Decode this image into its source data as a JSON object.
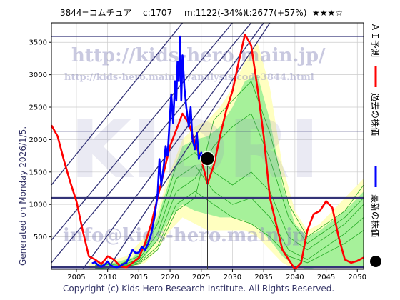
{
  "header": {
    "code_name": "3844=コムチュア",
    "current": "c:1707",
    "min": "m:1122(-34%)",
    "target": "t:2677(+57%)",
    "rating": "★★★☆"
  },
  "side_label": "Generated on Monday 2026/1/5.",
  "copyright": "Copyright (c) Kids-Hero Research Institute. All Rights Reserved.",
  "watermarks": {
    "url_main": "http://kids-hero.main.jp/",
    "url_code": "http://kids-hero.main.jp/analysis/code3844.html",
    "big": "KIDRI",
    "info": "info@kids-hero.main.jp"
  },
  "legend": [
    {
      "label": "ＡＩ予測",
      "color": "#ff0000",
      "kind": "line"
    },
    {
      "label": "過去の株価",
      "color": "#0000ff",
      "kind": "line"
    },
    {
      "label": "最新の株価",
      "color": "#000000",
      "kind": "dot"
    }
  ],
  "colors": {
    "plot_bg": "#ffffff",
    "band_outer": "#ffffc0",
    "band_inner": "#90ee90",
    "band_lines": "#22aa22",
    "trend_lines": "#333377",
    "hlines": "#333377",
    "ai": "#ff0000",
    "past": "#0000ff",
    "latest": "#000000"
  },
  "chart_data": {
    "type": "line",
    "xlim": [
      2001,
      2051
    ],
    "ylim": [
      0,
      3800
    ],
    "x_ticks": [
      2005,
      2010,
      2015,
      2020,
      2025,
      2030,
      2035,
      2040,
      2045,
      2050
    ],
    "y_ticks": [
      500,
      1000,
      1500,
      2000,
      2500,
      3000,
      3500
    ],
    "horizontal_lines": [
      {
        "y": 3590,
        "width": 1.2
      },
      {
        "y": 2130,
        "width": 1.2
      },
      {
        "y": 1100,
        "width": 2.5
      },
      {
        "y": 30,
        "width": 2.5
      }
    ],
    "trend_lines": [
      {
        "x1": 2001,
        "y1": 100,
        "x2": 2033,
        "y2": 3800
      },
      {
        "x1": 2001,
        "y1": 450,
        "x2": 2030,
        "y2": 3800
      },
      {
        "x1": 2001,
        "y1": 1300,
        "x2": 2022,
        "y2": 3800
      },
      {
        "x1": 2006,
        "y1": 0,
        "x2": 2035,
        "y2": 3800
      },
      {
        "x1": 2010,
        "y1": 0,
        "x2": 2036,
        "y2": 3800
      }
    ],
    "band_outer_upper": [
      [
        2007,
        100
      ],
      [
        2010,
        120
      ],
      [
        2013,
        200
      ],
      [
        2016,
        500
      ],
      [
        2018,
        900
      ],
      [
        2020,
        1500
      ],
      [
        2022,
        2000
      ],
      [
        2024,
        2200
      ],
      [
        2026,
        2300
      ],
      [
        2028,
        2500
      ],
      [
        2030,
        2800
      ],
      [
        2032,
        3200
      ],
      [
        2034,
        3500
      ],
      [
        2036,
        2800
      ],
      [
        2038,
        1600
      ],
      [
        2040,
        900
      ],
      [
        2042,
        600
      ],
      [
        2044,
        700
      ],
      [
        2046,
        900
      ],
      [
        2048,
        1100
      ],
      [
        2051,
        1400
      ]
    ],
    "band_outer_lower": [
      [
        2051,
        0
      ],
      [
        2046,
        0
      ],
      [
        2042,
        0
      ],
      [
        2040,
        0
      ],
      [
        2038,
        100
      ],
      [
        2036,
        300
      ],
      [
        2034,
        500
      ],
      [
        2032,
        600
      ],
      [
        2030,
        600
      ],
      [
        2028,
        600
      ],
      [
        2026,
        600
      ],
      [
        2024,
        700
      ],
      [
        2022,
        800
      ],
      [
        2020,
        600
      ],
      [
        2018,
        300
      ],
      [
        2016,
        100
      ],
      [
        2013,
        0
      ],
      [
        2010,
        0
      ],
      [
        2007,
        0
      ]
    ],
    "band_inner_upper": [
      [
        2008,
        80
      ],
      [
        2011,
        100
      ],
      [
        2014,
        180
      ],
      [
        2016,
        400
      ],
      [
        2018,
        800
      ],
      [
        2020,
        1400
      ],
      [
        2022,
        1900
      ],
      [
        2024,
        2000
      ],
      [
        2026,
        2050
      ],
      [
        2028,
        2200
      ],
      [
        2030,
        2500
      ],
      [
        2032,
        2900
      ],
      [
        2034,
        3000
      ],
      [
        2036,
        2300
      ],
      [
        2038,
        1300
      ],
      [
        2040,
        700
      ],
      [
        2042,
        500
      ],
      [
        2044,
        600
      ],
      [
        2046,
        750
      ],
      [
        2048,
        900
      ],
      [
        2051,
        1200
      ]
    ],
    "band_inner_lower": [
      [
        2051,
        50
      ],
      [
        2048,
        50
      ],
      [
        2046,
        50
      ],
      [
        2044,
        30
      ],
      [
        2042,
        0
      ],
      [
        2040,
        50
      ],
      [
        2038,
        200
      ],
      [
        2036,
        450
      ],
      [
        2034,
        650
      ],
      [
        2032,
        750
      ],
      [
        2030,
        800
      ],
      [
        2028,
        800
      ],
      [
        2026,
        850
      ],
      [
        2024,
        900
      ],
      [
        2022,
        1000
      ],
      [
        2020,
        800
      ],
      [
        2018,
        450
      ],
      [
        2016,
        200
      ],
      [
        2014,
        50
      ],
      [
        2011,
        0
      ],
      [
        2008,
        0
      ]
    ],
    "band_lines": [
      [
        [
          2008,
          60
        ],
        [
          2012,
          80
        ],
        [
          2015,
          200
        ],
        [
          2018,
          700
        ],
        [
          2021,
          1600
        ],
        [
          2024,
          1800
        ],
        [
          2027,
          1500
        ],
        [
          2030,
          1300
        ],
        [
          2033,
          1500
        ],
        [
          2036,
          1200
        ],
        [
          2039,
          500
        ],
        [
          2042,
          300
        ],
        [
          2045,
          500
        ],
        [
          2048,
          700
        ],
        [
          2051,
          1000
        ]
      ],
      [
        [
          2008,
          40
        ],
        [
          2012,
          60
        ],
        [
          2015,
          150
        ],
        [
          2018,
          550
        ],
        [
          2021,
          1400
        ],
        [
          2024,
          1600
        ],
        [
          2027,
          1200
        ],
        [
          2030,
          1000
        ],
        [
          2033,
          1100
        ],
        [
          2036,
          800
        ],
        [
          2039,
          300
        ],
        [
          2042,
          150
        ],
        [
          2045,
          350
        ],
        [
          2048,
          550
        ],
        [
          2051,
          800
        ]
      ],
      [
        [
          2008,
          30
        ],
        [
          2012,
          50
        ],
        [
          2015,
          120
        ],
        [
          2018,
          450
        ],
        [
          2021,
          1200
        ],
        [
          2024,
          1400
        ],
        [
          2027,
          1900
        ],
        [
          2030,
          2200
        ],
        [
          2033,
          2400
        ],
        [
          2036,
          1700
        ],
        [
          2039,
          800
        ],
        [
          2042,
          400
        ],
        [
          2045,
          600
        ],
        [
          2048,
          800
        ],
        [
          2051,
          1100
        ]
      ],
      [
        [
          2008,
          20
        ],
        [
          2012,
          40
        ],
        [
          2015,
          100
        ],
        [
          2018,
          350
        ],
        [
          2021,
          1000
        ],
        [
          2024,
          1200
        ],
        [
          2027,
          1000
        ],
        [
          2030,
          800
        ],
        [
          2033,
          700
        ],
        [
          2036,
          500
        ],
        [
          2039,
          200
        ],
        [
          2042,
          100
        ],
        [
          2045,
          250
        ],
        [
          2048,
          400
        ],
        [
          2051,
          600
        ]
      ],
      [
        [
          2008,
          10
        ],
        [
          2012,
          30
        ],
        [
          2015,
          80
        ],
        [
          2018,
          300
        ],
        [
          2021,
          900
        ],
        [
          2024,
          1100
        ],
        [
          2027,
          2300
        ],
        [
          2030,
          2600
        ],
        [
          2033,
          2900
        ],
        [
          2036,
          2100
        ],
        [
          2039,
          1000
        ],
        [
          2042,
          500
        ],
        [
          2045,
          700
        ],
        [
          2048,
          900
        ],
        [
          2051,
          1300
        ]
      ]
    ],
    "series": [
      {
        "name": "ＡＩ予測",
        "points": [
          [
            2001,
            2220
          ],
          [
            2002,
            2050
          ],
          [
            2003,
            1680
          ],
          [
            2004,
            1350
          ],
          [
            2005,
            1050
          ],
          [
            2006,
            600
          ],
          [
            2007,
            200
          ],
          [
            2008,
            150
          ],
          [
            2009,
            80
          ],
          [
            2010,
            200
          ],
          [
            2011,
            150
          ],
          [
            2012,
            50
          ],
          [
            2013,
            30
          ],
          [
            2014,
            100
          ],
          [
            2015,
            180
          ],
          [
            2016,
            400
          ],
          [
            2017,
            700
          ],
          [
            2018,
            1100
          ],
          [
            2019,
            1500
          ],
          [
            2020,
            1900
          ],
          [
            2021,
            2150
          ],
          [
            2022,
            2400
          ],
          [
            2023,
            2250
          ],
          [
            2024,
            1950
          ],
          [
            2025,
            1700
          ],
          [
            2026,
            1320
          ],
          [
            2027,
            1600
          ],
          [
            2028,
            2050
          ],
          [
            2029,
            2450
          ],
          [
            2030,
            2750
          ],
          [
            2031,
            3200
          ],
          [
            2032,
            3620
          ],
          [
            2033,
            3450
          ],
          [
            2034,
            2800
          ],
          [
            2035,
            2050
          ],
          [
            2036,
            1100
          ],
          [
            2037,
            700
          ],
          [
            2038,
            300
          ],
          [
            2039,
            150
          ],
          [
            2040,
            0
          ],
          [
            2041,
            100
          ],
          [
            2042,
            600
          ],
          [
            2043,
            850
          ],
          [
            2044,
            900
          ],
          [
            2045,
            1050
          ],
          [
            2046,
            950
          ],
          [
            2047,
            500
          ],
          [
            2048,
            150
          ],
          [
            2049,
            100
          ],
          [
            2050,
            130
          ],
          [
            2051,
            180
          ]
        ]
      },
      {
        "name": "過去の株価",
        "points": [
          [
            2007.5,
            90
          ],
          [
            2008,
            110
          ],
          [
            2008.5,
            60
          ],
          [
            2009,
            40
          ],
          [
            2009.5,
            70
          ],
          [
            2010,
            120
          ],
          [
            2010.5,
            60
          ],
          [
            2011,
            40
          ],
          [
            2011.5,
            30
          ],
          [
            2012,
            50
          ],
          [
            2012.5,
            80
          ],
          [
            2013,
            100
          ],
          [
            2013.5,
            200
          ],
          [
            2014,
            300
          ],
          [
            2014.5,
            250
          ],
          [
            2015,
            260
          ],
          [
            2015.5,
            350
          ],
          [
            2016,
            300
          ],
          [
            2016.5,
            400
          ],
          [
            2017,
            550
          ],
          [
            2017.5,
            800
          ],
          [
            2018,
            1150
          ],
          [
            2018.3,
            1700
          ],
          [
            2018.6,
            1300
          ],
          [
            2019,
            1600
          ],
          [
            2019.3,
            1900
          ],
          [
            2019.6,
            1750
          ],
          [
            2020,
            2400
          ],
          [
            2020.2,
            2700
          ],
          [
            2020.5,
            2250
          ],
          [
            2020.8,
            2900
          ],
          [
            2021,
            2600
          ],
          [
            2021.2,
            3200
          ],
          [
            2021.4,
            2900
          ],
          [
            2021.6,
            3590
          ],
          [
            2021.8,
            2600
          ],
          [
            2022,
            3300
          ],
          [
            2022.3,
            2800
          ],
          [
            2022.6,
            2500
          ],
          [
            2023,
            2200
          ],
          [
            2023.3,
            2500
          ],
          [
            2023.6,
            2000
          ],
          [
            2024,
            1850
          ],
          [
            2024.3,
            2100
          ],
          [
            2024.6,
            1700
          ],
          [
            2025,
            1800
          ],
          [
            2025.5,
            1650
          ]
        ]
      }
    ],
    "latest_point": {
      "x": 2026,
      "y": 1707
    }
  }
}
